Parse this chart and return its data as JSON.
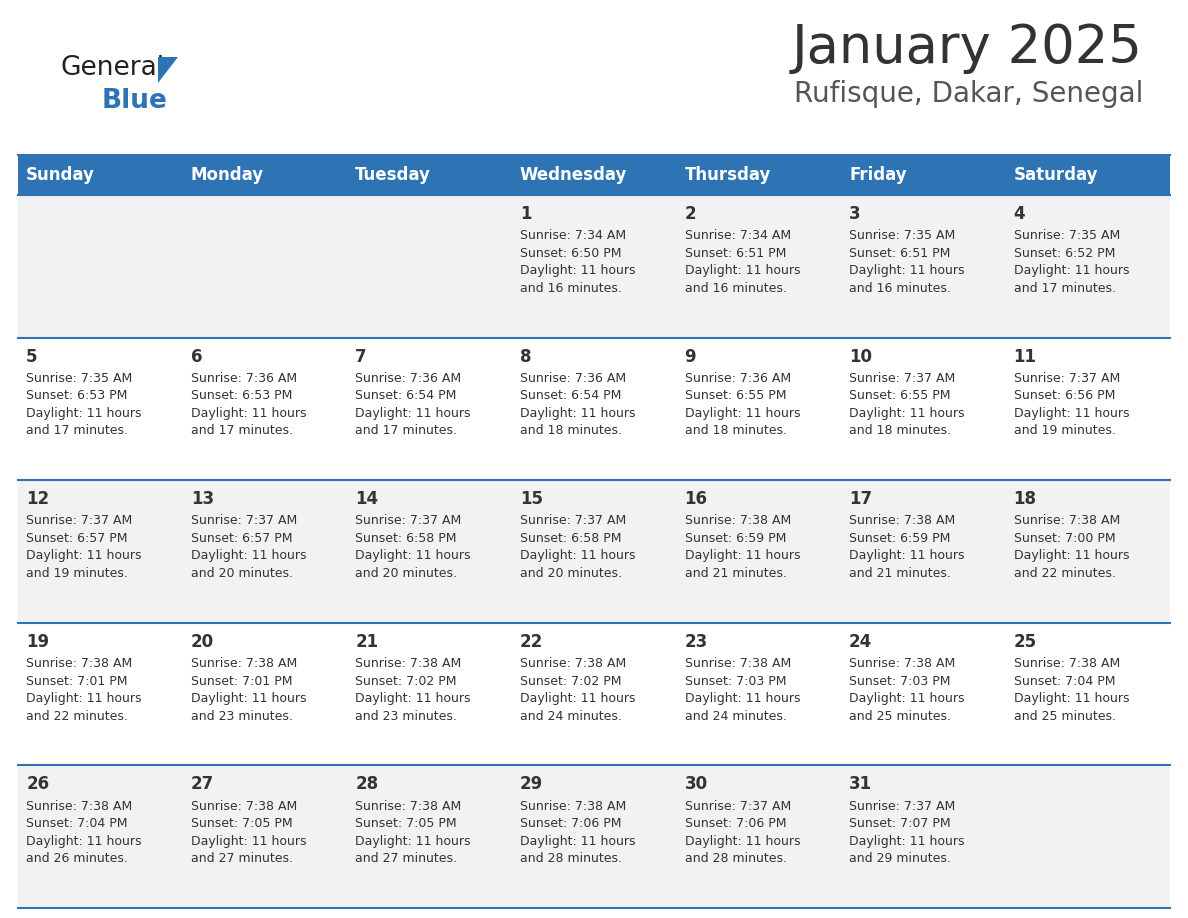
{
  "title": "January 2025",
  "subtitle": "Rufisque, Dakar, Senegal",
  "days_of_week": [
    "Sunday",
    "Monday",
    "Tuesday",
    "Wednesday",
    "Thursday",
    "Friday",
    "Saturday"
  ],
  "header_bg": "#2E74B5",
  "header_text": "#FFFFFF",
  "cell_bg_even": "#F2F2F2",
  "cell_bg_odd": "#FFFFFF",
  "cell_border": "#2E74B5",
  "day_number_color": "#333333",
  "info_text_color": "#333333",
  "title_color": "#333333",
  "subtitle_color": "#555555",
  "logo_general_color": "#222222",
  "logo_blue_color": "#2E74B5",
  "logo_triangle_color": "#2E74B5",
  "calendar_data": [
    [
      {
        "day": null,
        "sunrise": null,
        "sunset": null,
        "daylight": null
      },
      {
        "day": null,
        "sunrise": null,
        "sunset": null,
        "daylight": null
      },
      {
        "day": null,
        "sunrise": null,
        "sunset": null,
        "daylight": null
      },
      {
        "day": 1,
        "sunrise": "7:34 AM",
        "sunset": "6:50 PM",
        "daylight": "11 hours and 16 minutes."
      },
      {
        "day": 2,
        "sunrise": "7:34 AM",
        "sunset": "6:51 PM",
        "daylight": "11 hours and 16 minutes."
      },
      {
        "day": 3,
        "sunrise": "7:35 AM",
        "sunset": "6:51 PM",
        "daylight": "11 hours and 16 minutes."
      },
      {
        "day": 4,
        "sunrise": "7:35 AM",
        "sunset": "6:52 PM",
        "daylight": "11 hours and 17 minutes."
      }
    ],
    [
      {
        "day": 5,
        "sunrise": "7:35 AM",
        "sunset": "6:53 PM",
        "daylight": "11 hours and 17 minutes."
      },
      {
        "day": 6,
        "sunrise": "7:36 AM",
        "sunset": "6:53 PM",
        "daylight": "11 hours and 17 minutes."
      },
      {
        "day": 7,
        "sunrise": "7:36 AM",
        "sunset": "6:54 PM",
        "daylight": "11 hours and 17 minutes."
      },
      {
        "day": 8,
        "sunrise": "7:36 AM",
        "sunset": "6:54 PM",
        "daylight": "11 hours and 18 minutes."
      },
      {
        "day": 9,
        "sunrise": "7:36 AM",
        "sunset": "6:55 PM",
        "daylight": "11 hours and 18 minutes."
      },
      {
        "day": 10,
        "sunrise": "7:37 AM",
        "sunset": "6:55 PM",
        "daylight": "11 hours and 18 minutes."
      },
      {
        "day": 11,
        "sunrise": "7:37 AM",
        "sunset": "6:56 PM",
        "daylight": "11 hours and 19 minutes."
      }
    ],
    [
      {
        "day": 12,
        "sunrise": "7:37 AM",
        "sunset": "6:57 PM",
        "daylight": "11 hours and 19 minutes."
      },
      {
        "day": 13,
        "sunrise": "7:37 AM",
        "sunset": "6:57 PM",
        "daylight": "11 hours and 20 minutes."
      },
      {
        "day": 14,
        "sunrise": "7:37 AM",
        "sunset": "6:58 PM",
        "daylight": "11 hours and 20 minutes."
      },
      {
        "day": 15,
        "sunrise": "7:37 AM",
        "sunset": "6:58 PM",
        "daylight": "11 hours and 20 minutes."
      },
      {
        "day": 16,
        "sunrise": "7:38 AM",
        "sunset": "6:59 PM",
        "daylight": "11 hours and 21 minutes."
      },
      {
        "day": 17,
        "sunrise": "7:38 AM",
        "sunset": "6:59 PM",
        "daylight": "11 hours and 21 minutes."
      },
      {
        "day": 18,
        "sunrise": "7:38 AM",
        "sunset": "7:00 PM",
        "daylight": "11 hours and 22 minutes."
      }
    ],
    [
      {
        "day": 19,
        "sunrise": "7:38 AM",
        "sunset": "7:01 PM",
        "daylight": "11 hours and 22 minutes."
      },
      {
        "day": 20,
        "sunrise": "7:38 AM",
        "sunset": "7:01 PM",
        "daylight": "11 hours and 23 minutes."
      },
      {
        "day": 21,
        "sunrise": "7:38 AM",
        "sunset": "7:02 PM",
        "daylight": "11 hours and 23 minutes."
      },
      {
        "day": 22,
        "sunrise": "7:38 AM",
        "sunset": "7:02 PM",
        "daylight": "11 hours and 24 minutes."
      },
      {
        "day": 23,
        "sunrise": "7:38 AM",
        "sunset": "7:03 PM",
        "daylight": "11 hours and 24 minutes."
      },
      {
        "day": 24,
        "sunrise": "7:38 AM",
        "sunset": "7:03 PM",
        "daylight": "11 hours and 25 minutes."
      },
      {
        "day": 25,
        "sunrise": "7:38 AM",
        "sunset": "7:04 PM",
        "daylight": "11 hours and 25 minutes."
      }
    ],
    [
      {
        "day": 26,
        "sunrise": "7:38 AM",
        "sunset": "7:04 PM",
        "daylight": "11 hours and 26 minutes."
      },
      {
        "day": 27,
        "sunrise": "7:38 AM",
        "sunset": "7:05 PM",
        "daylight": "11 hours and 27 minutes."
      },
      {
        "day": 28,
        "sunrise": "7:38 AM",
        "sunset": "7:05 PM",
        "daylight": "11 hours and 27 minutes."
      },
      {
        "day": 29,
        "sunrise": "7:38 AM",
        "sunset": "7:06 PM",
        "daylight": "11 hours and 28 minutes."
      },
      {
        "day": 30,
        "sunrise": "7:37 AM",
        "sunset": "7:06 PM",
        "daylight": "11 hours and 28 minutes."
      },
      {
        "day": 31,
        "sunrise": "7:37 AM",
        "sunset": "7:07 PM",
        "daylight": "11 hours and 29 minutes."
      },
      {
        "day": null,
        "sunrise": null,
        "sunset": null,
        "daylight": null
      }
    ]
  ]
}
